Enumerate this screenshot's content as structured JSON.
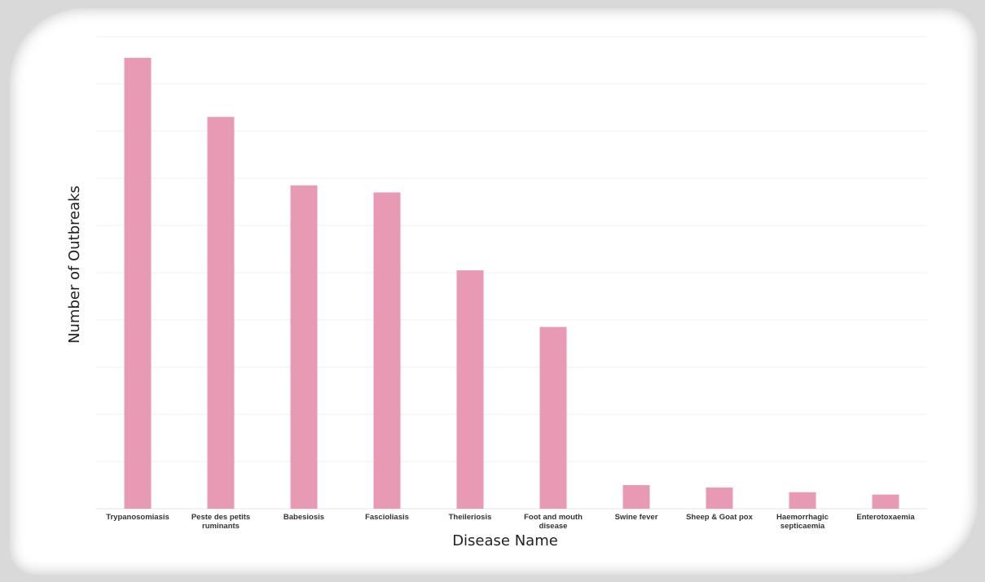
{
  "chart_data": {
    "type": "bar",
    "title": "",
    "xlabel": "Disease Name",
    "ylabel": "Number of Outbreaks",
    "categories": [
      [
        "Trypanosomiasis"
      ],
      [
        "Peste des petits",
        "ruminants"
      ],
      [
        "Babesiosis"
      ],
      [
        "Fascioliasis"
      ],
      [
        "Theileriosis"
      ],
      [
        "Foot and mouth",
        "disease"
      ],
      [
        "Swine fever"
      ],
      [
        "Sheep & Goat pox"
      ],
      [
        "Haemorrhagic",
        "septicaemia"
      ],
      [
        "Enterotoxaemia"
      ]
    ],
    "values": [
      95.5,
      83,
      68.5,
      67,
      50.5,
      38.5,
      5,
      4.5,
      3.5,
      3
    ],
    "ylim": [
      0,
      100
    ],
    "grid": true,
    "bar_color": "#e899b3",
    "grid_color": "#f0f0f0"
  }
}
